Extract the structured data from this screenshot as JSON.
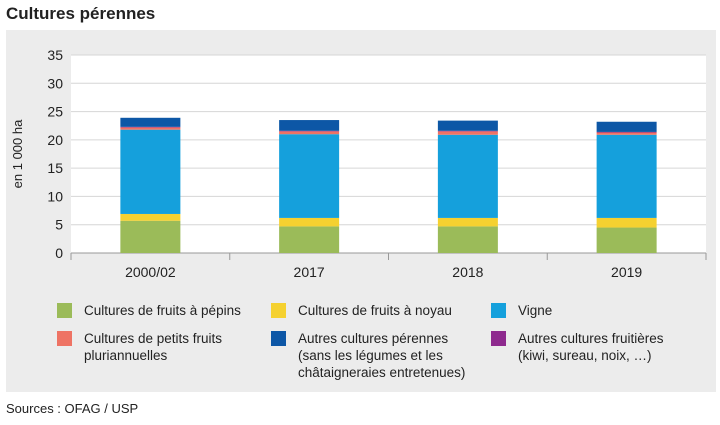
{
  "title": "Cultures pérennes",
  "source": "Sources : OFAG / USP",
  "chart_data": {
    "type": "bar",
    "stacked": true,
    "title": "Cultures pérennes",
    "ylabel": "en 1 000 ha",
    "xlabel": "",
    "ylim": [
      0,
      35
    ],
    "yticks": [
      0,
      5,
      10,
      15,
      20,
      25,
      30,
      35
    ],
    "grid": true,
    "categories": [
      "2000/02",
      "2017",
      "2018",
      "2019"
    ],
    "series": [
      {
        "name": "Cultures de fruits à pépins",
        "color": "#9bbb59",
        "values": [
          5.7,
          4.7,
          4.7,
          4.5
        ]
      },
      {
        "name": "Cultures de fruits à noyau",
        "color": "#f5d130",
        "values": [
          1.2,
          1.5,
          1.5,
          1.7
        ]
      },
      {
        "name": "Vigne",
        "color": "#15a0dc",
        "values": [
          14.9,
          14.8,
          14.7,
          14.7
        ]
      },
      {
        "name": "Cultures de petits fruits pluriannuelles",
        "color": "#ee7364",
        "values": [
          0.4,
          0.5,
          0.6,
          0.4
        ]
      },
      {
        "name": "Autres cultures fruitières (kiwi, sureau, noix, …)",
        "color": "#8e2a8e",
        "values": [
          0.1,
          0.1,
          0.1,
          0.1
        ]
      },
      {
        "name": "Autres cultures pérennes (sans les légumes et les châtaigneraies entretenues)",
        "color": "#0d57a6",
        "values": [
          1.6,
          1.9,
          1.8,
          1.8
        ]
      }
    ]
  },
  "legend": [
    {
      "lines": [
        "Cultures de fruits à pépins"
      ],
      "color": "#9bbb59"
    },
    {
      "lines": [
        "Cultures de fruits à noyau"
      ],
      "color": "#f5d130"
    },
    {
      "lines": [
        "Vigne"
      ],
      "color": "#15a0dc"
    },
    {
      "lines": [
        "Cultures de petits fruits",
        "pluriannuelles"
      ],
      "color": "#ee7364"
    },
    {
      "lines": [
        "Autres cultures pérennes",
        "(sans les légumes et les",
        "châtaigneraies entretenues)"
      ],
      "color": "#0d57a6"
    },
    {
      "lines": [
        "Autres cultures fruitières",
        "(kiwi, sureau, noix, …)"
      ],
      "color": "#8e2a8e"
    }
  ]
}
